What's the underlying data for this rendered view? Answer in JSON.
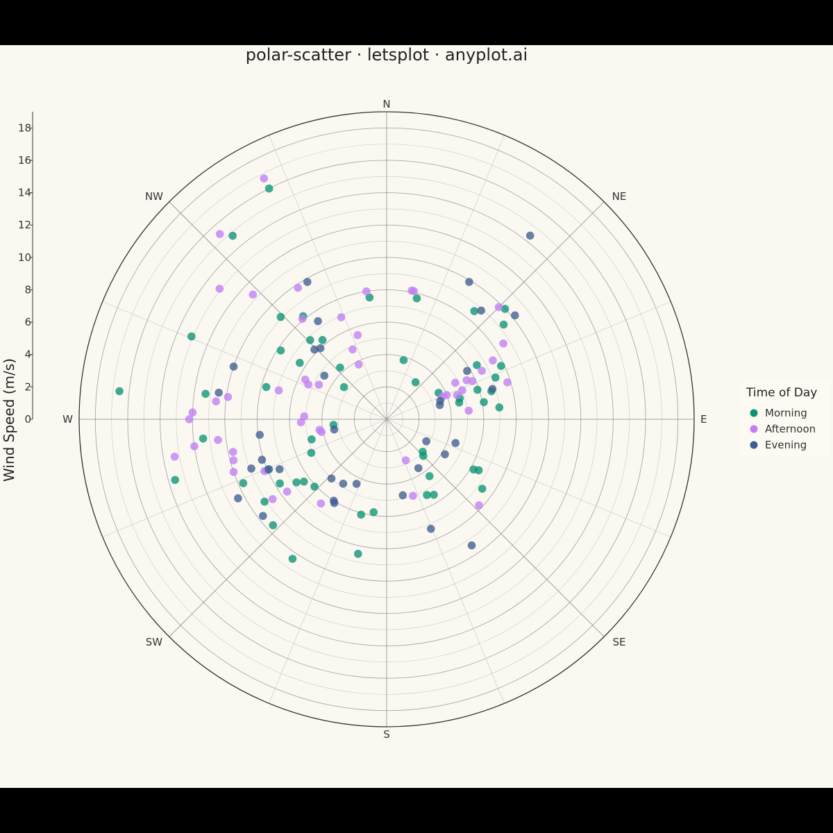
{
  "chart_data": {
    "type": "scatter",
    "coord": "polar",
    "title": "polar-scatter · letsplot · anyplot.ai",
    "ylabel": "Wind Speed (m/s)",
    "ylim": [
      0,
      19
    ],
    "y_ticks": [
      0,
      2,
      4,
      6,
      8,
      10,
      12,
      14,
      16,
      18
    ],
    "directions": [
      "N",
      "NE",
      "E",
      "SE",
      "S",
      "SW",
      "W",
      "NW"
    ],
    "legend": {
      "title": "Time of Day",
      "position": "right"
    },
    "colors": {
      "Morning": "#0A9475",
      "Afternoon": "#C07EF2",
      "Evening": "#3F5C91"
    },
    "series": [
      {
        "name": "Morning",
        "points": [
          [
            333,
            16.0
          ],
          [
            320,
            14.8
          ],
          [
            293,
            13.1
          ],
          [
            352,
            7.6
          ],
          [
            14,
            7.7
          ],
          [
            39,
            8.6
          ],
          [
            47,
            10.0
          ],
          [
            51,
            9.3
          ],
          [
            65,
            7.8
          ],
          [
            69,
            7.2
          ],
          [
            59,
            6.5
          ],
          [
            72,
            5.9
          ],
          [
            75,
            6.7
          ],
          [
            84,
            7.0
          ],
          [
            80,
            6.1
          ],
          [
            77,
            4.6
          ],
          [
            74,
            4.7
          ],
          [
            63,
            3.6
          ],
          [
            16,
            3.8
          ],
          [
            38,
            2.9
          ],
          [
            314,
            9.1
          ],
          [
            321,
            8.2
          ],
          [
            276,
            16.6
          ],
          [
            303,
            7.8
          ],
          [
            303,
            6.4
          ],
          [
            316,
            6.8
          ],
          [
            321,
            6.3
          ],
          [
            285,
            7.7
          ],
          [
            318,
            4.3
          ],
          [
            307,
            3.3
          ],
          [
            278,
            11.3
          ],
          [
            264,
            11.4
          ],
          [
            254,
            13.6
          ],
          [
            246,
            9.7
          ],
          [
            247,
            8.0
          ],
          [
            236,
            9.1
          ],
          [
            227,
            9.6
          ],
          [
            239,
            7.7
          ],
          [
            235,
            6.8
          ],
          [
            233,
            6.4
          ],
          [
            227,
            6.1
          ],
          [
            214,
            10.4
          ],
          [
            192,
            8.5
          ],
          [
            188,
            5.8
          ],
          [
            152,
            5.3
          ],
          [
            148,
            5.5
          ],
          [
            143,
            4.4
          ],
          [
            135,
            3.2
          ],
          [
            132,
            3.0
          ],
          [
            120,
            6.2
          ],
          [
            126,
            7.3
          ],
          [
            119,
            6.5
          ],
          [
            264,
            3.3
          ],
          [
            255,
            4.8
          ],
          [
            246,
            5.1
          ],
          [
            195,
            6.1
          ]
        ]
      },
      {
        "name": "Afternoon",
        "points": [
          [
            333,
            16.7
          ],
          [
            318,
            15.4
          ],
          [
            308,
            13.1
          ],
          [
            313,
            11.3
          ],
          [
            326,
            9.8
          ],
          [
            320,
            8.1
          ],
          [
            336,
            6.9
          ],
          [
            341,
            5.5
          ],
          [
            334,
            4.8
          ],
          [
            333,
            3.8
          ],
          [
            11,
            8.1
          ],
          [
            12,
            8.1
          ],
          [
            351,
            8.0
          ],
          [
            45,
            9.8
          ],
          [
            57,
            8.6
          ],
          [
            61,
            7.5
          ],
          [
            63,
            6.6
          ],
          [
            73,
            7.8
          ],
          [
            66,
            5.8
          ],
          [
            64,
            5.5
          ],
          [
            62,
            4.8
          ],
          [
            69,
            5.0
          ],
          [
            71,
            4.6
          ],
          [
            68,
            3.7
          ],
          [
            68,
            4.0
          ],
          [
            84,
            5.1
          ],
          [
            297,
            4.7
          ],
          [
            296,
            5.6
          ],
          [
            285,
            6.9
          ],
          [
            278,
            9.9
          ],
          [
            272,
            12.0
          ],
          [
            276,
            10.6
          ],
          [
            270,
            12.2
          ],
          [
            260,
            13.3
          ],
          [
            262,
            12.0
          ],
          [
            263,
            10.5
          ],
          [
            258,
            9.7
          ],
          [
            255,
            9.8
          ],
          [
            251,
            10.0
          ],
          [
            247,
            8.2
          ],
          [
            235,
            8.6
          ],
          [
            234,
            7.6
          ],
          [
            218,
            6.6
          ],
          [
            155,
            2.8
          ],
          [
            161,
            5.0
          ],
          [
            133,
            7.8
          ],
          [
            268,
            5.3
          ],
          [
            272,
            5.1
          ],
          [
            261,
            4.2
          ],
          [
            294,
            5.3
          ],
          [
            259,
            4.1
          ]
        ]
      },
      {
        "name": "Evening",
        "points": [
          [
            31,
            9.9
          ],
          [
            41,
            8.9
          ],
          [
            38,
            14.4
          ],
          [
            51,
            10.2
          ],
          [
            59,
            5.8
          ],
          [
            74,
            6.8
          ],
          [
            75,
            3.4
          ],
          [
            71,
            3.5
          ],
          [
            109,
            4.5
          ],
          [
            121,
            4.2
          ],
          [
            119,
            2.8
          ],
          [
            147,
            3.6
          ],
          [
            168,
            4.8
          ],
          [
            158,
            7.3
          ],
          [
            146,
            9.4
          ],
          [
            330,
            9.8
          ],
          [
            325,
            7.4
          ],
          [
            314,
            6.2
          ],
          [
            317,
            6.0
          ],
          [
            305,
            4.7
          ],
          [
            289,
            10.0
          ],
          [
            279,
            10.5
          ],
          [
            263,
            7.9
          ],
          [
            252,
            8.1
          ],
          [
            250,
            8.9
          ],
          [
            242,
            10.4
          ],
          [
            247,
            7.9
          ],
          [
            245,
            7.3
          ],
          [
            232,
            9.7
          ],
          [
            213,
            6.0
          ],
          [
            212,
            6.1
          ],
          [
            223,
            5.0
          ],
          [
            214,
            4.8
          ],
          [
            259,
            3.3
          ],
          [
            205,
            4.4
          ]
        ]
      }
    ]
  }
}
